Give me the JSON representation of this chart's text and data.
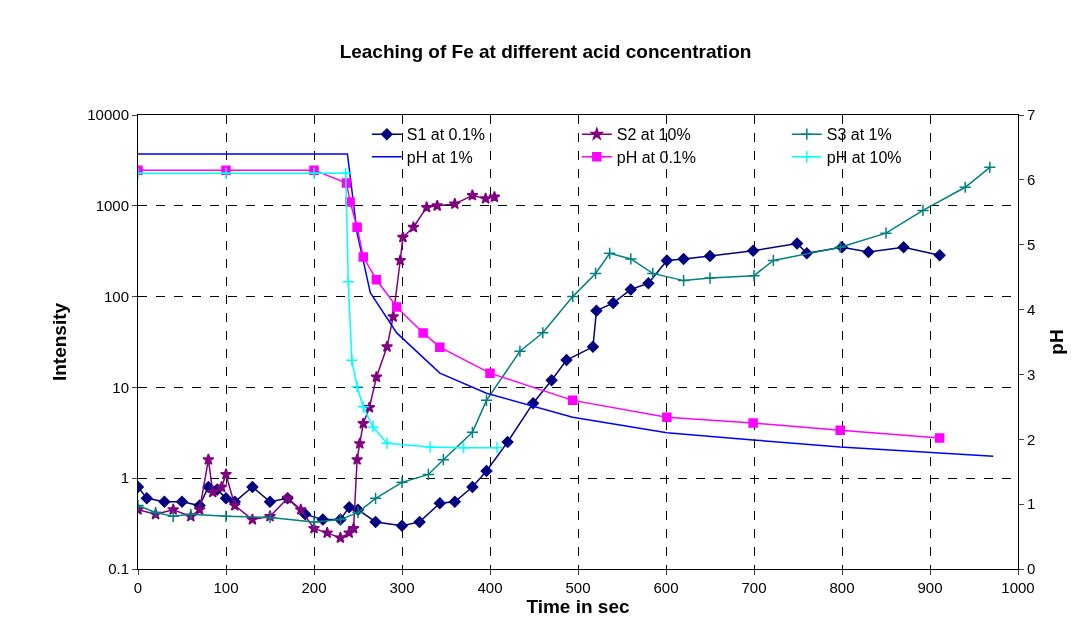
{
  "chart_data": {
    "type": "line",
    "title": "Leaching of Fe at different acid concentration",
    "xlabel": "Time in sec",
    "ylabel": "Intensity",
    "y2label": "pH",
    "xlim": [
      0,
      1000
    ],
    "xticks": [
      0,
      100,
      200,
      300,
      400,
      500,
      600,
      700,
      800,
      900,
      1000
    ],
    "ylim": [
      0.1,
      10000
    ],
    "yticks": [
      0.1,
      1,
      10,
      100,
      1000,
      10000
    ],
    "log": "y",
    "y2lim": [
      0,
      7
    ],
    "y2ticks": [
      0,
      1,
      2,
      3,
      4,
      5,
      6,
      7
    ],
    "grid": true,
    "legend": "top",
    "line_style": "solid",
    "series": [
      {
        "name": "S1 at 0.1%",
        "color": "#000080",
        "marker": "diamond",
        "x": [
          0,
          10,
          30,
          50,
          70,
          80,
          90,
          100,
          110,
          130,
          150,
          170,
          190,
          210,
          230,
          240,
          250,
          270,
          300,
          320,
          343,
          360,
          380,
          396,
          420,
          449,
          470,
          487,
          517,
          521,
          540,
          560,
          580,
          601,
          620,
          650,
          699,
          749,
          760,
          800,
          830,
          870,
          911
        ],
        "values": [
          0.8,
          0.6,
          0.55,
          0.55,
          0.5,
          0.8,
          0.75,
          0.6,
          0.55,
          0.8,
          0.55,
          0.6,
          0.4,
          0.35,
          0.35,
          0.48,
          0.45,
          0.33,
          0.3,
          0.33,
          0.53,
          0.55,
          0.8,
          1.2,
          2.5,
          6.7,
          12,
          20,
          28,
          70,
          85,
          120,
          140,
          250,
          260,
          280,
          320,
          385,
          300,
          350,
          310,
          350,
          285
        ]
      },
      {
        "name": "S2 at 10%",
        "color": "#800080",
        "marker": "star",
        "x": [
          0,
          20,
          40,
          60,
          70,
          80,
          85,
          95,
          100,
          110,
          130,
          150,
          170,
          185,
          200,
          215,
          230,
          240,
          245,
          249,
          252,
          256,
          263,
          271,
          283,
          290,
          298,
          301,
          313,
          328,
          340,
          360,
          380,
          395,
          405
        ],
        "values": [
          0.45,
          0.4,
          0.45,
          0.38,
          0.45,
          1.6,
          0.7,
          0.8,
          1.1,
          0.5,
          0.35,
          0.38,
          0.6,
          0.45,
          0.28,
          0.25,
          0.22,
          0.25,
          0.28,
          1.6,
          2.4,
          4,
          6,
          13,
          28,
          60,
          250,
          450,
          580,
          960,
          1000,
          1050,
          1300,
          1200,
          1250
        ]
      },
      {
        "name": "S3 at 1%",
        "color": "#008080",
        "marker": "cross",
        "x": [
          0,
          20,
          40,
          60,
          100,
          150,
          200,
          230,
          250,
          270,
          300,
          330,
          347,
          380,
          396,
          434,
          460,
          494,
          520,
          536,
          560,
          585,
          620,
          650,
          700,
          722,
          798,
          850,
          892,
          940,
          968
        ],
        "values": [
          0.5,
          0.42,
          0.38,
          0.4,
          0.38,
          0.37,
          0.33,
          0.35,
          0.42,
          0.6,
          0.9,
          1.1,
          1.6,
          3.2,
          7.2,
          25,
          40,
          100,
          180,
          300,
          260,
          180,
          150,
          160,
          170,
          250,
          350,
          500,
          890,
          1600,
          2650
        ]
      },
      {
        "name": "pH at 1%",
        "color": "#0000ff",
        "marker": "none",
        "axis": "y2",
        "x": [
          0,
          100,
          200,
          238,
          249,
          264,
          294,
          343,
          396,
          494,
          601,
          699,
          798,
          897,
          972
        ],
        "values": [
          6.4,
          6.4,
          6.4,
          6.4,
          5.18,
          4.26,
          3.64,
          3.02,
          2.71,
          2.34,
          2.1,
          1.99,
          1.88,
          1.8,
          1.74
        ]
      },
      {
        "name": "pH at 0.1%",
        "color": "#ff00ff",
        "marker": "square",
        "axis": "y2",
        "x": [
          0,
          100,
          200,
          237,
          241,
          249,
          256,
          271,
          294,
          324,
          343,
          400,
          494,
          601,
          699,
          798,
          911
        ],
        "values": [
          6.15,
          6.15,
          6.15,
          5.95,
          5.66,
          5.27,
          4.81,
          4.46,
          4.04,
          3.64,
          3.42,
          3.02,
          2.6,
          2.34,
          2.25,
          2.14,
          2.02
        ]
      },
      {
        "name": "pH at 10%",
        "color": "#00ffff",
        "marker": "cross",
        "axis": "y2",
        "x": [
          0,
          100,
          200,
          236,
          239,
          243,
          249,
          256,
          267,
          283,
          332,
          370,
          408
        ],
        "values": [
          6.1,
          6.1,
          6.1,
          6.1,
          4.43,
          3.22,
          2.81,
          2.5,
          2.19,
          1.94,
          1.88,
          1.87,
          1.87
        ]
      }
    ]
  }
}
